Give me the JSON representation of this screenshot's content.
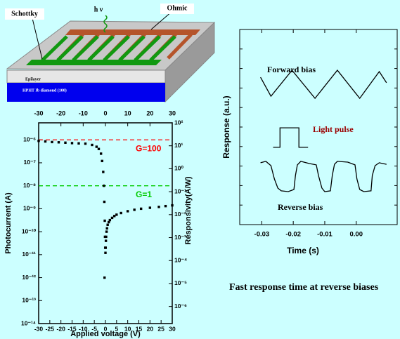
{
  "diagram": {
    "labels": {
      "schottky": "Schottky",
      "hv": "h ν",
      "ohmic": "Ohmic",
      "epilayer": "Epilayer",
      "substrate": "HPHT Ib diamond (100)"
    }
  },
  "chart_data": [
    {
      "type": "scatter",
      "x_label": "Applied voltage (V)",
      "y_label": "Photocurrent (A)",
      "y2_label": "Responsivity(A/W)",
      "color": "#000000",
      "x": [
        -30,
        -27,
        -24,
        -21,
        -18,
        -15,
        -12,
        -9,
        -6,
        -4,
        -3,
        -2,
        -1.5,
        -1,
        -0.7,
        -0.5,
        -0.3,
        -0.2,
        -0.1,
        0,
        0.1,
        0.2,
        0.3,
        0.5,
        0.7,
        1,
        1.5,
        2,
        3,
        4,
        5,
        7,
        10,
        13,
        16,
        20,
        24,
        27,
        30,
        -0.4
      ],
      "values": [
        9e-07,
        8.5e-07,
        8e-07,
        7.8e-07,
        7.5e-07,
        7.2e-07,
        7e-07,
        6.8e-07,
        6e-07,
        5e-07,
        4e-07,
        2.5e-07,
        1.2e-07,
        4e-08,
        1e-08,
        2e-09,
        3e-10,
        6e-11,
        2e-11,
        1.2e-11,
        2e-11,
        4e-11,
        6e-11,
        1e-10,
        1.4e-10,
        2e-10,
        2.6e-10,
        3.2e-10,
        4e-10,
        4.8e-10,
        5.5e-10,
        6.5e-10,
        7.8e-10,
        9e-10,
        1e-09,
        1.1e-09,
        1.2e-09,
        1.3e-09,
        1.4e-09,
        1e-12
      ],
      "xlim": [
        -30,
        30
      ],
      "xticks": [
        -30,
        -25,
        -20,
        -15,
        -10,
        -5,
        0,
        5,
        10,
        15,
        20,
        25,
        30
      ],
      "x2ticks": [
        -30,
        -20,
        -10,
        0,
        10,
        20,
        30
      ],
      "ylim": [
        1e-14,
        5.5e-06
      ],
      "yscale": "log",
      "yticks": [
        {
          "value": 1e-14,
          "label": "10⁻¹⁴"
        },
        {
          "value": 1e-13,
          "label": "10⁻¹³"
        },
        {
          "value": 1e-12,
          "label": "10⁻¹²"
        },
        {
          "value": 1e-11,
          "label": "10⁻¹¹"
        },
        {
          "value": 1e-10,
          "label": "10⁻¹⁰"
        },
        {
          "value": 1e-09,
          "label": "10⁻⁹"
        },
        {
          "value": 1e-08,
          "label": "10⁻⁸"
        },
        {
          "value": 1e-07,
          "label": "10⁻⁷"
        },
        {
          "value": 1e-06,
          "label": "10⁻⁶"
        }
      ],
      "y2lim": [
        1.8e-07,
        100
      ],
      "y2scale": "log",
      "y2ticks": [
        {
          "value": 1e-06,
          "label": "10⁻⁶"
        },
        {
          "value": 1e-05,
          "label": "10⁻⁵"
        },
        {
          "value": 0.0001,
          "label": "10⁻⁴"
        },
        {
          "value": 0.001,
          "label": "10⁻³"
        },
        {
          "value": 0.01,
          "label": "10⁻²"
        },
        {
          "value": 0.1,
          "label": "10⁻¹"
        },
        {
          "value": 1,
          "label": "10⁰"
        },
        {
          "value": 10,
          "label": "10¹"
        },
        {
          "value": 100,
          "label": "10²"
        }
      ],
      "hlines": [
        {
          "value": 1e-06,
          "label": "G=100",
          "color": "#ff0000"
        },
        {
          "value": 1e-08,
          "label": "G=1",
          "color": "#00cc00"
        }
      ]
    },
    {
      "type": "line",
      "x_label": "Time (s)",
      "y_label": "Response (a.u.)",
      "xlim": [
        -0.037,
        0.013
      ],
      "xticks": [
        -0.03,
        -0.02,
        -0.01,
        {
          "value": 0,
          "label": "0.00"
        }
      ],
      "ylim": [
        0,
        10
      ],
      "yticks": [
        1,
        2,
        3,
        4,
        5,
        6,
        7,
        8,
        9
      ],
      "ytick_labels": false,
      "series": [
        {
          "name": "Forward bias",
          "color": "#000000",
          "label_color": "#000000",
          "x": [
            -0.0304,
            -0.0271,
            -0.0204,
            -0.0131,
            -0.006,
            0.0011,
            0.0073,
            0.0096
          ],
          "values": [
            7.55,
            6.58,
            7.91,
            6.47,
            7.91,
            6.47,
            7.84,
            7.27
          ]
        },
        {
          "name": "Light pulse",
          "color": "#000000",
          "label_color": "#990000",
          "x": [
            -0.0264,
            -0.0242,
            -0.0242,
            -0.0182,
            -0.0182,
            -0.0153
          ],
          "values": [
            3.96,
            3.96,
            4.96,
            4.96,
            3.96,
            3.96
          ]
        },
        {
          "name": "Reverse bias",
          "color": "#000000",
          "label_color": "#000000",
          "x": [
            -0.0304,
            -0.0287,
            -0.0271,
            -0.026,
            -0.0249,
            -0.0238,
            -0.0216,
            -0.0198,
            -0.0193,
            -0.0187,
            -0.0176,
            -0.0149,
            -0.0127,
            -0.012,
            -0.0109,
            -0.01,
            -0.0082,
            -0.0076,
            -0.0069,
            -0.006,
            -0.0027,
            -0.0004,
            0.0002,
            0.0011,
            0.0024,
            0.0047,
            0.0051,
            0.006,
            0.0073,
            0.0096
          ],
          "values": [
            3.17,
            3.24,
            3.02,
            2.34,
            1.87,
            1.73,
            1.69,
            1.8,
            2.52,
            3.06,
            3.24,
            3.13,
            3.06,
            2.52,
            1.87,
            1.69,
            1.73,
            2.52,
            3.09,
            3.24,
            3.2,
            3.06,
            2.34,
            1.8,
            1.69,
            1.73,
            2.52,
            3.02,
            3.17,
            3.09
          ]
        }
      ]
    }
  ],
  "caption": "Fast response time at reverse biases"
}
